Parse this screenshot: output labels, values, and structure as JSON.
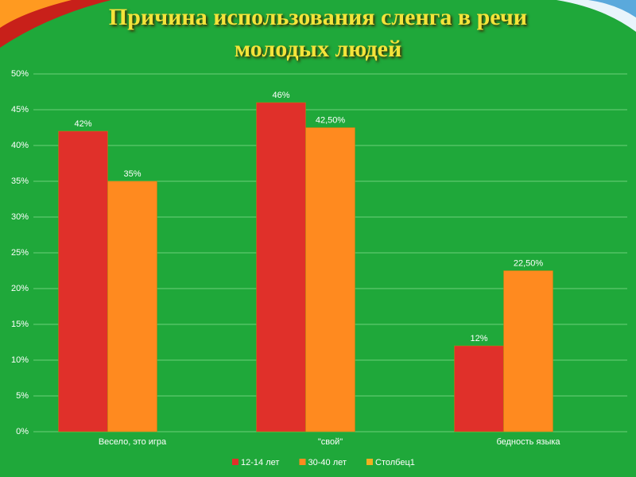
{
  "chart_data": {
    "type": "bar",
    "title": "Причина использования сленга в речи молодых людей",
    "categories": [
      "Весело, это игра",
      "\"свой\"",
      "бедность языка"
    ],
    "series": [
      {
        "name": "12-14 лет",
        "color": "#e0302a",
        "values": [
          42,
          46,
          12
        ],
        "value_labels": [
          "42%",
          "46%",
          "12%"
        ]
      },
      {
        "name": "30-40 лет",
        "color": "#ff8a1f",
        "values": [
          35,
          42.5,
          22.5
        ],
        "value_labels": [
          "35%",
          "42,50%",
          "22,50%"
        ]
      },
      {
        "name": "Столбец1",
        "color": "#f0b020",
        "values": [
          null,
          null,
          null
        ]
      }
    ],
    "ylim": [
      0,
      50
    ],
    "yticks": [
      {
        "value": 0,
        "label": "0%"
      },
      {
        "value": 5,
        "label": "5%"
      },
      {
        "value": 10,
        "label": "10%"
      },
      {
        "value": 15,
        "label": "15%"
      },
      {
        "value": 20,
        "label": "20%"
      },
      {
        "value": 25,
        "label": "25%"
      },
      {
        "value": 30,
        "label": "30%"
      },
      {
        "value": 35,
        "label": "35%"
      },
      {
        "value": 40,
        "label": "40%"
      },
      {
        "value": 45,
        "label": "45%"
      },
      {
        "value": 50,
        "label": "50%"
      }
    ],
    "grid": true,
    "legend": "bottom"
  }
}
